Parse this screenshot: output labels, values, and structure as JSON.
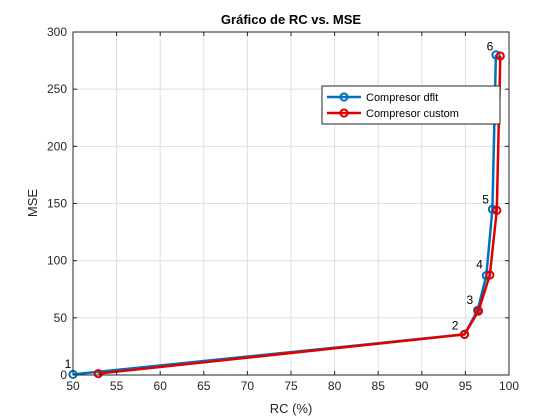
{
  "chart_data": {
    "type": "line",
    "title": "Gráfico de RC vs. MSE",
    "xlabel": "RC (%)",
    "ylabel": "MSE",
    "xlim": [
      50,
      100
    ],
    "ylim": [
      0,
      300
    ],
    "xticks": [
      50,
      55,
      60,
      65,
      70,
      75,
      80,
      85,
      90,
      95,
      100
    ],
    "yticks": [
      0,
      50,
      100,
      150,
      200,
      250,
      300
    ],
    "grid": true,
    "legend_position": "upper-right",
    "series": [
      {
        "name": "Compresor dflt",
        "color": "#0072BD",
        "marker": "circle",
        "x": [
          50.0,
          94.9,
          96.4,
          97.4,
          98.1,
          98.5
        ],
        "y": [
          0.5,
          35.5,
          56.5,
          87.0,
          145.0,
          280.0
        ]
      },
      {
        "name": "Compresor custom",
        "color": "#E00000",
        "marker": "circle",
        "x": [
          52.9,
          94.9,
          96.5,
          97.8,
          98.6,
          99.0
        ],
        "y": [
          1.2,
          35.5,
          56.0,
          87.5,
          144.0,
          279.0
        ]
      }
    ],
    "annotations": [
      {
        "text": "1",
        "x": 49.8,
        "y": 6
      },
      {
        "text": "2",
        "x": 94.2,
        "y": 40
      },
      {
        "text": "3",
        "x": 95.9,
        "y": 62
      },
      {
        "text": "4",
        "x": 97.0,
        "y": 93
      },
      {
        "text": "5",
        "x": 97.7,
        "y": 150
      },
      {
        "text": "6",
        "x": 98.2,
        "y": 284
      }
    ]
  }
}
